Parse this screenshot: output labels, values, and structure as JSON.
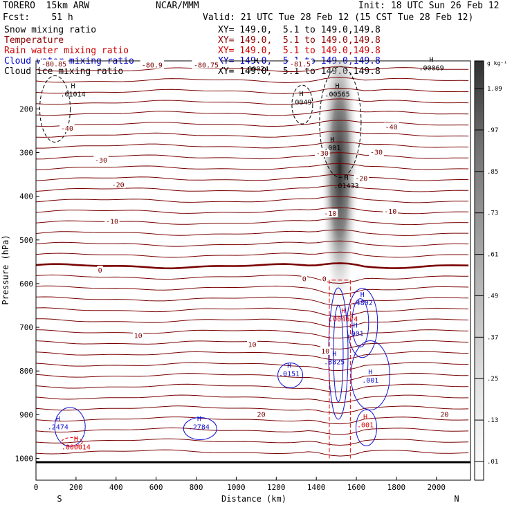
{
  "header": {
    "model": "TORERO  15km ARW",
    "org": "NCAR/MMM",
    "init": "Init: 18 UTC Sun 26 Feb 12",
    "fcst": "Fcst:    51 h",
    "valid": "Valid: 21 UTC Tue 28 Feb 12 (15 CST Tue 28 Feb 12)"
  },
  "fields": [
    {
      "name": "Snow mixing ratio",
      "xy": "",
      "color": "#000000"
    },
    {
      "name": "Temperature",
      "xy": "XY= 149.0,  5.1 to 149.0,149.8",
      "color": "#8b0000"
    },
    {
      "name": "Rain water mixing ratio",
      "xy": "XY= 149.0,  5.1 to 149.0,149.8",
      "color": "#d00000"
    },
    {
      "name": "Cloud water mixing ratio",
      "xy": "XY= 149.0,  5.1 to 149.0,149.8",
      "color": "#0000cc"
    },
    {
      "name": "Cloud ice mixing ratio",
      "xy": "XY= 149.0,  5.1 to 149.0,149.8",
      "color": "#000000"
    }
  ],
  "xy_snow": "XY= 149.0,  5.1 to 149.0,149.8",
  "colors": {
    "temperature": "#7a0000",
    "rain": "#e00000",
    "cloud_water": "#1010d0",
    "ice": "#000000",
    "snow_shade": "#404040"
  },
  "chart_data": {
    "type": "contour-cross-section",
    "xlabel": "Distance (km)",
    "ylabel": "Pressure (hPa)",
    "xlim": [
      0,
      2170
    ],
    "ylim": [
      1050,
      90
    ],
    "x_ticks": [
      0,
      200,
      400,
      600,
      800,
      1000,
      1200,
      1400,
      1600,
      1800,
      2000
    ],
    "y_ticks": [
      200,
      300,
      400,
      500,
      600,
      700,
      800,
      900,
      1000
    ],
    "x_ends": [
      "S",
      "N"
    ],
    "colorbar": {
      "unit": "g kg⁻¹",
      "levels": [
        ".01",
        ".13",
        ".25",
        ".37",
        ".49",
        ".61",
        ".73",
        ".85",
        ".97",
        "1.09"
      ]
    },
    "temperature_labels": [
      {
        "text": "-80.85",
        "x": 90,
        "p": 98
      },
      {
        "text": "-80.9",
        "x": 580,
        "p": 100
      },
      {
        "text": "-80.75",
        "x": 850,
        "p": 100
      },
      {
        "text": "-81.5",
        "x": 1320,
        "p": 98
      },
      {
        "text": "-40",
        "x": 155,
        "p": 245
      },
      {
        "text": "-30",
        "x": 325,
        "p": 318
      },
      {
        "text": "-20",
        "x": 410,
        "p": 374
      },
      {
        "text": "-10",
        "x": 380,
        "p": 458
      },
      {
        "text": "0",
        "x": 320,
        "p": 570
      },
      {
        "text": "0",
        "x": 1340,
        "p": 590
      },
      {
        "text": "0",
        "x": 1440,
        "p": 590
      },
      {
        "text": "-40",
        "x": 1775,
        "p": 242
      },
      {
        "text": "-30",
        "x": 1700,
        "p": 300
      },
      {
        "text": "-20",
        "x": 1625,
        "p": 360
      },
      {
        "text": "-10",
        "x": 1770,
        "p": 435
      },
      {
        "text": "-30",
        "x": 1430,
        "p": 302
      },
      {
        "text": "-10",
        "x": 1470,
        "p": 440
      },
      {
        "text": "10",
        "x": 510,
        "p": 720
      },
      {
        "text": "10",
        "x": 1080,
        "p": 740
      },
      {
        "text": "10",
        "x": 1445,
        "p": 755
      },
      {
        "text": "20",
        "x": 1125,
        "p": 900
      },
      {
        "text": "20",
        "x": 2040,
        "p": 900
      }
    ],
    "maxima_labels": [
      {
        "text": ".01014",
        "x": 185,
        "p": 170,
        "color": "ice"
      },
      {
        "text": ".0049",
        "x": 1325,
        "p": 188,
        "color": "ice"
      },
      {
        "text": ".00565",
        "x": 1505,
        "p": 170,
        "color": "ice"
      },
      {
        "text": ".00069",
        "x": 1975,
        "p": 110,
        "color": "ice"
      },
      {
        "text": ".00024",
        "x": 1100,
        "p": 112,
        "color": "ice"
      },
      {
        "text": ".001",
        "x": 1480,
        "p": 293,
        "color": "ice"
      },
      {
        "text": ".01433",
        "x": 1550,
        "p": 380,
        "color": "ice"
      },
      {
        "text": ".4802",
        "x": 1630,
        "p": 648,
        "color": "cloud_water"
      },
      {
        "text": ".0151",
        "x": 1265,
        "p": 810,
        "color": "cloud_water"
      },
      {
        "text": ".3825",
        "x": 1490,
        "p": 783,
        "color": "cloud_water"
      },
      {
        "text": ".001",
        "x": 1595,
        "p": 718,
        "color": "cloud_water"
      },
      {
        "text": ".001",
        "x": 1670,
        "p": 825,
        "color": "cloud_water"
      },
      {
        "text": ".2474",
        "x": 110,
        "p": 932,
        "color": "cloud_water"
      },
      {
        "text": ".2784",
        "x": 815,
        "p": 932,
        "color": "cloud_water"
      },
      {
        "text": ".000014",
        "x": 200,
        "p": 978,
        "color": "rain"
      },
      {
        "text": ".004674",
        "x": 1535,
        "p": 685,
        "color": "rain"
      },
      {
        "text": ".001",
        "x": 1645,
        "p": 927,
        "color": "rain"
      }
    ]
  }
}
